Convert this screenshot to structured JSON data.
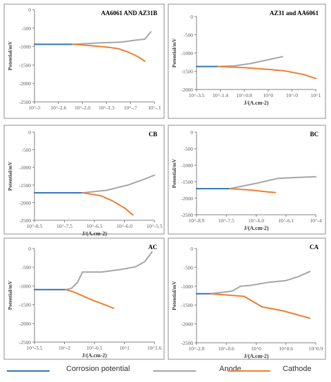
{
  "colors": {
    "corrosion": "#2e74b5",
    "anode": "#a5a5a5",
    "cathode": "#ed7d31",
    "axis": "#808080",
    "border": "#8c8c8c"
  },
  "legend": [
    {
      "key": "corrosion",
      "label": "Corrosion potential"
    },
    {
      "key": "anode",
      "label": "Anode"
    },
    {
      "key": "cathode",
      "label": "Cathode"
    }
  ],
  "chart_data": [
    {
      "type": "line",
      "title": "AA6061 AND AZ31B",
      "ylabel": "Potential/mV",
      "xlabel": "",
      "ylim": [
        -2500,
        0
      ],
      "yticks": [
        "0",
        "-500",
        "-1000",
        "-1500",
        "-2000",
        "-2500"
      ],
      "xticks": [
        "10^-5",
        "10^-2.6",
        "10^-2.0",
        "10^-1.3",
        "10^-.7",
        "10^-.1"
      ],
      "series": [
        {
          "key": "corrosion",
          "x": [
            0,
            0.32
          ],
          "y": [
            -940,
            -940
          ]
        },
        {
          "key": "anode",
          "x": [
            0.32,
            0.55,
            0.72,
            0.86,
            0.92,
            0.97
          ],
          "y": [
            -940,
            -900,
            -880,
            -820,
            -800,
            -600
          ]
        },
        {
          "key": "cathode",
          "x": [
            0.32,
            0.45,
            0.62,
            0.7,
            0.78,
            0.86,
            0.92
          ],
          "y": [
            -940,
            -970,
            -1020,
            -1060,
            -1150,
            -1270,
            -1400
          ]
        }
      ]
    },
    {
      "type": "line",
      "title": "AZ31 and AA6061",
      "ylabel": "Potential/mV",
      "xlabel": "J/(A.cm-2)",
      "ylim": [
        -2000,
        0
      ],
      "yticks": [
        "0",
        "-500",
        "-1000",
        "-1500",
        "-2000"
      ],
      "xticks": [
        "10^-3.5",
        "10^-1.4",
        "10^-0.8",
        "10^0",
        "10^-0",
        "10^1"
      ],
      "series": [
        {
          "key": "corrosion",
          "x": [
            0,
            0.18
          ],
          "y": [
            -1370,
            -1370
          ]
        },
        {
          "key": "anode",
          "x": [
            0.18,
            0.32,
            0.45,
            0.58,
            0.72
          ],
          "y": [
            -1370,
            -1350,
            -1290,
            -1200,
            -1100
          ]
        },
        {
          "key": "cathode",
          "x": [
            0.18,
            0.4,
            0.6,
            0.74,
            0.9,
            1.0
          ],
          "y": [
            -1370,
            -1400,
            -1450,
            -1490,
            -1590,
            -1700
          ]
        }
      ]
    },
    {
      "type": "line",
      "title": "CB",
      "ylabel": "Potential/mV",
      "xlabel": "J/(A.cm-2)",
      "ylim": [
        -2500,
        0
      ],
      "yticks": [
        "0",
        "-500",
        "-1000",
        "-1500",
        "-2000",
        "-2500"
      ],
      "xticks": [
        "10^-8.5",
        "10^-7.5",
        "10^-6.5",
        "10^-6.0",
        "10^-5.5"
      ],
      "series": [
        {
          "key": "corrosion",
          "x": [
            0,
            0.4
          ],
          "y": [
            -1720,
            -1720
          ]
        },
        {
          "key": "anode",
          "x": [
            0.4,
            0.6,
            0.78,
            0.92,
            1.0
          ],
          "y": [
            -1720,
            -1650,
            -1500,
            -1330,
            -1220
          ]
        },
        {
          "key": "cathode",
          "x": [
            0.4,
            0.55,
            0.65,
            0.75,
            0.82
          ],
          "y": [
            -1720,
            -1800,
            -1950,
            -2150,
            -2350
          ]
        }
      ]
    },
    {
      "type": "line",
      "title": "BC",
      "ylabel": "Potential/mV",
      "xlabel": "J/(A.cm-2)",
      "ylim": [
        -2500,
        0
      ],
      "yticks": [
        "0",
        "-500",
        "-1000",
        "-1500",
        "-2000",
        "-2500"
      ],
      "xticks": [
        "10^-8.9",
        "10^-7.5",
        "10^-6.0",
        "10^-6.1",
        "10^-4"
      ],
      "series": [
        {
          "key": "corrosion",
          "x": [
            0,
            0.28
          ],
          "y": [
            -1710,
            -1710
          ]
        },
        {
          "key": "anode",
          "x": [
            0.28,
            0.5,
            0.68,
            0.85,
            1.0
          ],
          "y": [
            -1710,
            -1550,
            -1400,
            -1370,
            -1350
          ]
        },
        {
          "key": "cathode",
          "x": [
            0.28,
            0.45,
            0.6,
            0.66
          ],
          "y": [
            -1710,
            -1750,
            -1810,
            -1830
          ]
        }
      ]
    },
    {
      "type": "line",
      "title": "AC",
      "ylabel": "Potential/mV",
      "xlabel": "J/(A.cm-2)",
      "ylim": [
        -2500,
        0
      ],
      "yticks": [
        "0",
        "-500",
        "-1000",
        "-1500",
        "-2000",
        "-2500"
      ],
      "xticks": [
        "10^-3.5",
        "10^-2",
        "10^-0.5",
        "10^1",
        "10^1.6"
      ],
      "series": [
        {
          "key": "corrosion",
          "x": [
            0,
            0.26
          ],
          "y": [
            -1100,
            -1100
          ]
        },
        {
          "key": "anode",
          "x": [
            0.26,
            0.31,
            0.36,
            0.4,
            0.56,
            0.72,
            0.84,
            0.92,
            0.98
          ],
          "y": [
            -1100,
            -1060,
            -900,
            -630,
            -630,
            -560,
            -490,
            -350,
            -90
          ]
        },
        {
          "key": "cathode",
          "x": [
            0.26,
            0.32,
            0.46,
            0.6,
            0.66
          ],
          "y": [
            -1100,
            -1150,
            -1350,
            -1520,
            -1600
          ]
        }
      ]
    },
    {
      "type": "line",
      "title": "CA",
      "ylabel": "Potential/mV",
      "xlabel": "J/(A.cm-2)",
      "ylim": [
        -2500,
        0
      ],
      "yticks": [
        "0",
        "-500",
        "-1000",
        "-1500",
        "-2000",
        "-2500"
      ],
      "xticks": [
        "10^-2.8",
        "10^-0.6",
        "10^0",
        "10^0.6",
        "10^0.9"
      ],
      "series": [
        {
          "key": "corrosion",
          "x": [
            0,
            0.12
          ],
          "y": [
            -1200,
            -1200
          ]
        },
        {
          "key": "anode",
          "x": [
            0.12,
            0.3,
            0.37,
            0.45,
            0.6,
            0.75,
            0.85,
            0.95
          ],
          "y": [
            -1200,
            -1130,
            -1000,
            -980,
            -900,
            -850,
            -750,
            -610
          ]
        },
        {
          "key": "cathode",
          "x": [
            0.12,
            0.4,
            0.55,
            0.72,
            0.95
          ],
          "y": [
            -1200,
            -1270,
            -1550,
            -1650,
            -1850
          ]
        }
      ]
    }
  ]
}
